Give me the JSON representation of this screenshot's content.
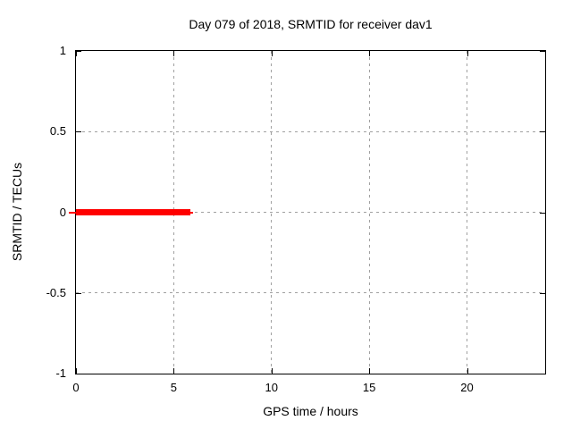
{
  "chart_data": {
    "type": "line",
    "title": "Day 079 of 2018, SRMTID for receiver dav1",
    "xlabel": "GPS time / hours",
    "ylabel": "SRMTID / TECUs",
    "xlim": [
      0,
      24
    ],
    "ylim": [
      -1,
      1
    ],
    "xticks": [
      "0",
      "5",
      "10",
      "15",
      "20"
    ],
    "yticks": [
      "1",
      "0.5",
      "0",
      "-0.5",
      "-1"
    ],
    "grid": true,
    "grid_color": "#a0a0a0",
    "axis_color": "#000000",
    "background_color": "#ffffff",
    "legend_position": "none",
    "series": [
      {
        "name": "SRMTID",
        "color": "#ff0000",
        "description": "Constant value 0 TECUs from 0 h to about 5.9 h GPS time; no data for the rest of the day",
        "segments": [
          {
            "x1": -0.35,
            "x2": 0.1,
            "y": 0,
            "thickness_px": 2
          },
          {
            "x1": 0.0,
            "x2": 5.85,
            "y": 0,
            "thickness_px": 7
          },
          {
            "x1": 5.85,
            "x2": 6.0,
            "y": 0,
            "thickness_px": 2
          }
        ]
      }
    ]
  }
}
